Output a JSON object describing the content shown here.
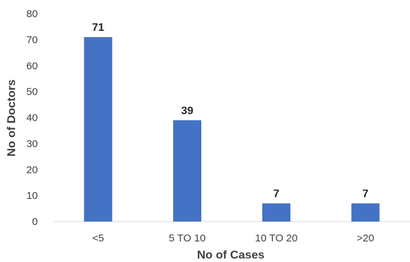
{
  "chart_data": {
    "type": "bar",
    "categories": [
      "<5",
      "5 TO 10",
      "10 TO 20",
      ">20"
    ],
    "values": [
      71,
      39,
      7,
      7
    ],
    "data_labels": [
      "71",
      "39",
      "7",
      "7"
    ],
    "y_ticks": [
      "0",
      "10",
      "20",
      "30",
      "40",
      "50",
      "60",
      "70",
      "80"
    ],
    "title": "",
    "xlabel": "No of Cases",
    "ylabel": "No of Doctors",
    "ylim": [
      0,
      80
    ],
    "grid": false,
    "legend": "none",
    "colors": {
      "bar": "#4472C4",
      "axis": "#D9D9D9",
      "text": "#404040"
    }
  }
}
